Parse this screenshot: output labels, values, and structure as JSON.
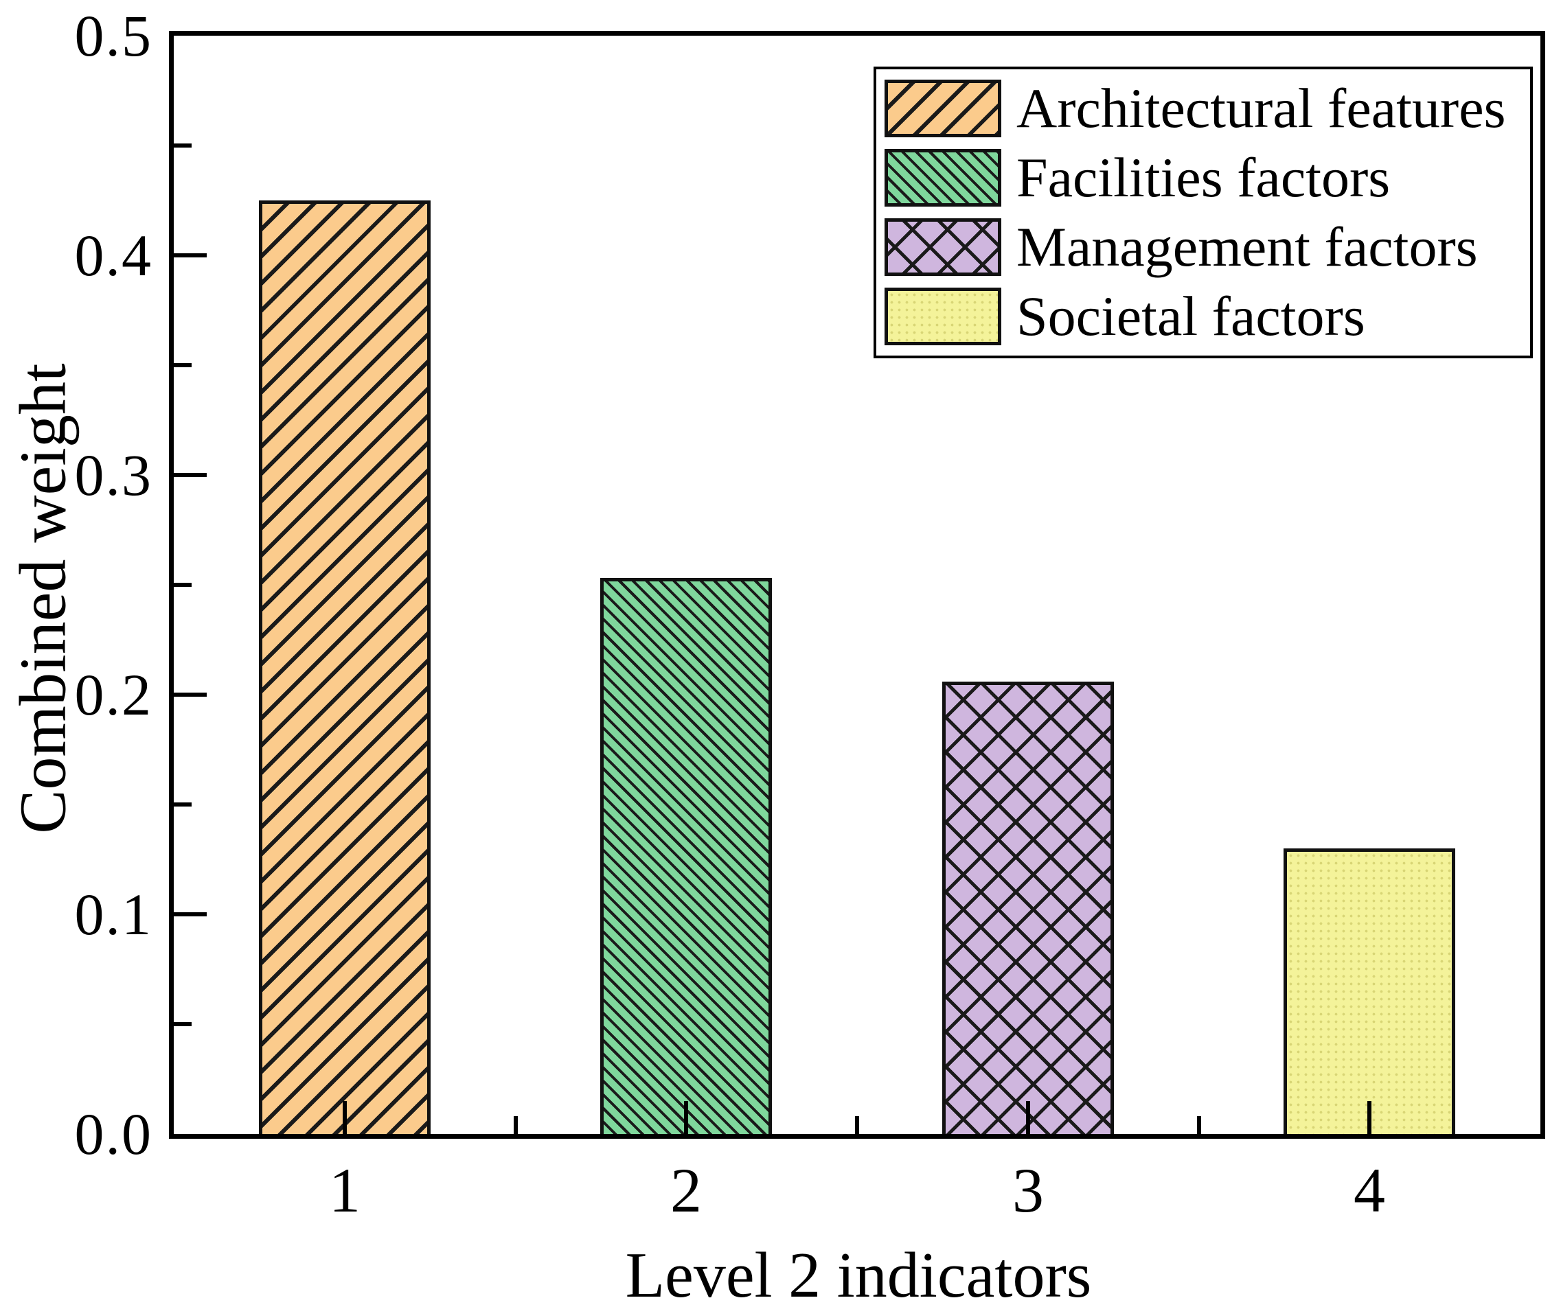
{
  "chart_data": {
    "type": "bar",
    "title": "",
    "xlabel": "Level 2 indicators",
    "ylabel": "Combined weight",
    "categories": [
      "1",
      "2",
      "3",
      "4"
    ],
    "values": [
      0.425,
      0.253,
      0.206,
      0.13
    ],
    "ylim": [
      0,
      0.5
    ],
    "y_ticks": [
      "0.5",
      "0.4",
      "0.3",
      "0.2",
      "0.1",
      "0.0"
    ],
    "y_tick_values": [
      0.5,
      0.4,
      0.3,
      0.2,
      0.1,
      0.0
    ],
    "y_minor_tick_values": [
      0.45,
      0.35,
      0.25,
      0.15,
      0.05
    ],
    "grid": false,
    "legend_position": "upper right",
    "legend": [
      {
        "label": "Architectural features",
        "color": "#fbcb8c",
        "pattern": "diagonal-up"
      },
      {
        "label": "Facilities factors",
        "color": "#7fd79c",
        "pattern": "diagonal-down"
      },
      {
        "label": "Management factors",
        "color": "#cfb6de",
        "pattern": "crosshatch"
      },
      {
        "label": "Societal factors",
        "color": "#f4f39a",
        "pattern": "dots"
      }
    ],
    "bar_outline_color": "#111111",
    "axis_color": "#000000"
  }
}
